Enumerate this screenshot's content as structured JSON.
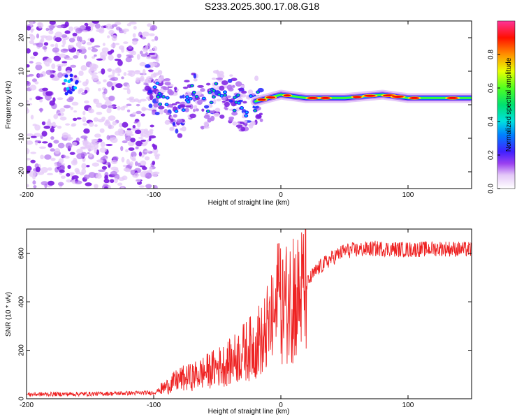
{
  "title": "S233.2025.300.17.08.G18",
  "colors": {
    "snr_line": "#ee2222",
    "axis": "#000000",
    "colormap": [
      "#ffffff",
      "#e4c8f8",
      "#b070f0",
      "#7a1ae0",
      "#2222ff",
      "#00c8ff",
      "#00e080",
      "#40ff20",
      "#ffe000",
      "#ff7000",
      "#ff0000",
      "#ff3399"
    ]
  },
  "chart_data": [
    {
      "type": "heatmap",
      "title": "S233.2025.300.17.08.G18",
      "xlabel": "Height of straight line (km)",
      "ylabel": "Frequency (Hz)",
      "xlim": [
        -200,
        150
      ],
      "ylim": [
        -25,
        25
      ],
      "xticks": [
        "-200",
        "-100",
        "0",
        "100"
      ],
      "yticks": [
        "-20",
        "-10",
        "0",
        "10",
        "20"
      ],
      "colorbar": {
        "label": "Normalized spectral amplitude",
        "range": [
          0.0,
          1.0
        ],
        "ticks": [
          "0.0",
          "0.2",
          "0.4",
          "0.6",
          "0.8"
        ]
      },
      "ridge": [
        {
          "x": -105,
          "y": 5
        },
        {
          "x": -95,
          "y": 3
        },
        {
          "x": -88,
          "y": 0
        },
        {
          "x": -80,
          "y": -3
        },
        {
          "x": -70,
          "y": 3
        },
        {
          "x": -60,
          "y": -1
        },
        {
          "x": -50,
          "y": 4
        },
        {
          "x": -40,
          "y": 2
        },
        {
          "x": -30,
          "y": -1
        },
        {
          "x": -20,
          "y": 1
        },
        {
          "x": -10,
          "y": 2
        },
        {
          "x": 0,
          "y": 3
        },
        {
          "x": 20,
          "y": 2
        },
        {
          "x": 50,
          "y": 2
        },
        {
          "x": 80,
          "y": 3
        },
        {
          "x": 100,
          "y": 2
        },
        {
          "x": 130,
          "y": 2
        },
        {
          "x": 150,
          "y": 2
        }
      ]
    },
    {
      "type": "line",
      "xlabel": "Height of straight line (km)",
      "ylabel": "SNR (10 * v/v)",
      "xlim": [
        -200,
        150
      ],
      "ylim": [
        0,
        700
      ],
      "xticks": [
        "-200",
        "-100",
        "0",
        "100"
      ],
      "yticks": [
        "0",
        "200",
        "400",
        "600"
      ],
      "series": [
        {
          "name": "SNR",
          "x": [
            -200,
            -150,
            -100,
            -90,
            -80,
            -70,
            -60,
            -50,
            -40,
            -30,
            -20,
            -15,
            -10,
            -5,
            0,
            5,
            10,
            15,
            20,
            25,
            30,
            40,
            50,
            75,
            100,
            125,
            150
          ],
          "y": [
            18,
            20,
            25,
            50,
            80,
            90,
            110,
            130,
            150,
            190,
            220,
            260,
            290,
            330,
            380,
            400,
            410,
            430,
            470,
            510,
            540,
            580,
            610,
            620,
            615,
            620,
            615
          ]
        }
      ]
    }
  ]
}
